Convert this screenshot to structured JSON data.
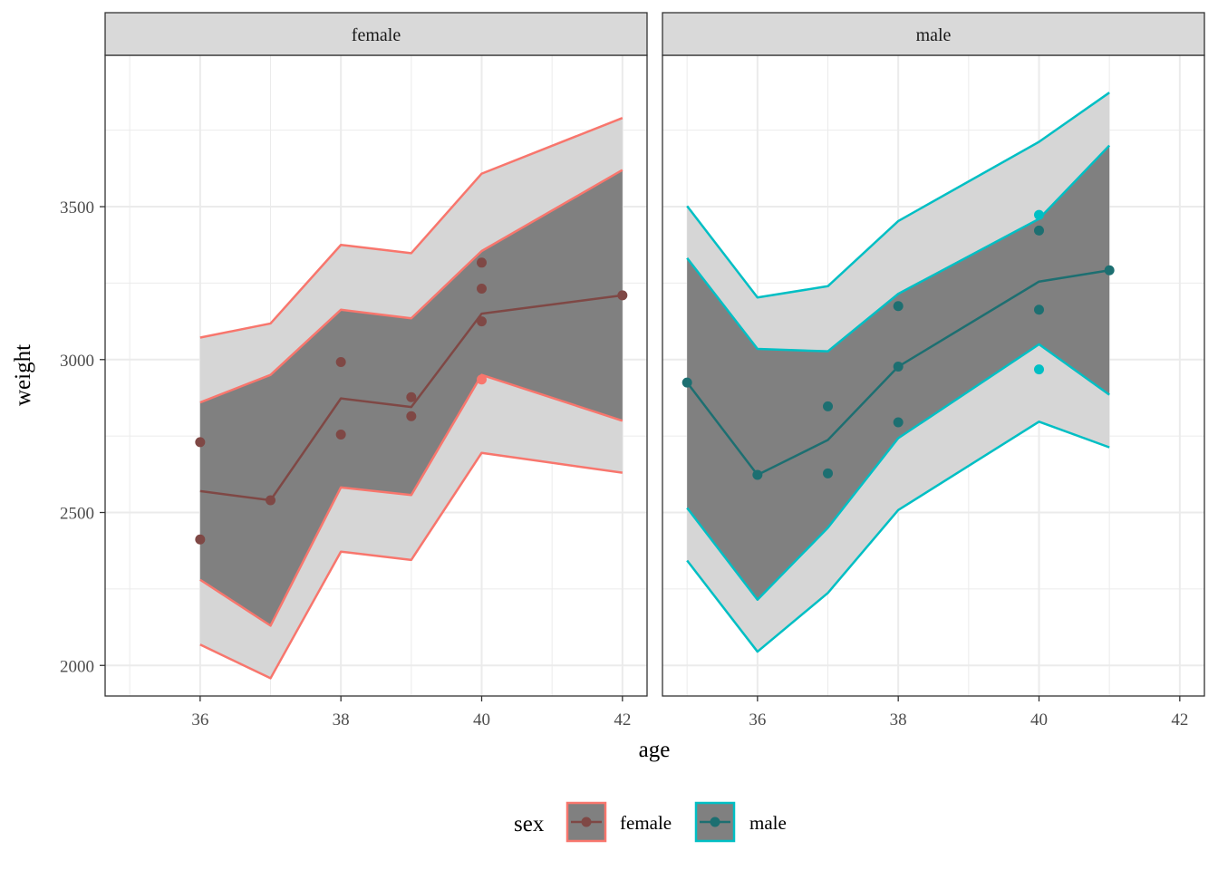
{
  "chart_data": {
    "type": "line",
    "facet_by": "sex",
    "xlabel": "age",
    "ylabel": "weight",
    "xlim": [
      34.65,
      42.35
    ],
    "ylim": [
      1900,
      3995
    ],
    "x_ticks": [
      36,
      38,
      40,
      42
    ],
    "y_ticks": [
      2000,
      2500,
      3000,
      3500
    ],
    "grid": true,
    "legend": {
      "title": "sex",
      "position": "bottom",
      "entries": [
        {
          "label": "female",
          "color": "#F8766D"
        },
        {
          "label": "male",
          "color": "#00BFC4"
        }
      ]
    },
    "band_colors": {
      "outer": "#d6d6d6",
      "inner": "#808080"
    },
    "panels": [
      {
        "strip": "female",
        "color": "#F8766D",
        "line_color": "#7f4845",
        "x": [
          36,
          37,
          38,
          39,
          40,
          42
        ],
        "fit": [
          2570,
          2540,
          2873,
          2845,
          3150,
          3210
        ],
        "inner_lower": [
          2280,
          2130,
          2582,
          2557,
          2950,
          2800
        ],
        "inner_upper": [
          2860,
          2950,
          3163,
          3135,
          3355,
          3620
        ],
        "outer_lower": [
          2068,
          1958,
          2372,
          2345,
          2695,
          2630
        ],
        "outer_upper": [
          3072,
          3118,
          3375,
          3348,
          3608,
          3790
        ],
        "points": [
          {
            "x": 36,
            "y": 2730
          },
          {
            "x": 36,
            "y": 2412
          },
          {
            "x": 37,
            "y": 2540
          },
          {
            "x": 38,
            "y": 2992
          },
          {
            "x": 38,
            "y": 2755
          },
          {
            "x": 39,
            "y": 2877
          },
          {
            "x": 39,
            "y": 2815
          },
          {
            "x": 40,
            "y": 3317
          },
          {
            "x": 40,
            "y": 3232
          },
          {
            "x": 40,
            "y": 3125
          },
          {
            "x": 40,
            "y": 2935
          },
          {
            "x": 42,
            "y": 3210
          }
        ]
      },
      {
        "strip": "male",
        "color": "#00BFC4",
        "line_color": "#1d6f71",
        "x": [
          35,
          36,
          37,
          38,
          40,
          41
        ],
        "fit": [
          2925,
          2623,
          2737,
          2977,
          3255,
          3292
        ],
        "inner_lower": [
          2515,
          2215,
          2450,
          2743,
          3050,
          2885
        ],
        "inner_upper": [
          3332,
          3035,
          3027,
          3215,
          3460,
          3700
        ],
        "outer_lower": [
          2343,
          2045,
          2237,
          2508,
          2797,
          2713
        ],
        "outer_upper": [
          3502,
          3203,
          3240,
          3453,
          3712,
          3873
        ],
        "points": [
          {
            "x": 35,
            "y": 2925
          },
          {
            "x": 36,
            "y": 2623
          },
          {
            "x": 37,
            "y": 2847
          },
          {
            "x": 37,
            "y": 2628
          },
          {
            "x": 38,
            "y": 3175
          },
          {
            "x": 38,
            "y": 2977
          },
          {
            "x": 38,
            "y": 2795
          },
          {
            "x": 40,
            "y": 3473
          },
          {
            "x": 40,
            "y": 3422
          },
          {
            "x": 40,
            "y": 3163
          },
          {
            "x": 40,
            "y": 2968
          },
          {
            "x": 41,
            "y": 3292
          }
        ]
      }
    ]
  }
}
